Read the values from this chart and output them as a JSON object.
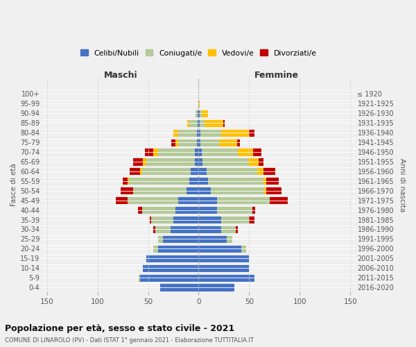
{
  "age_groups": [
    "0-4",
    "5-9",
    "10-14",
    "15-19",
    "20-24",
    "25-29",
    "30-34",
    "35-39",
    "40-44",
    "45-49",
    "50-54",
    "55-59",
    "60-64",
    "65-69",
    "70-74",
    "75-79",
    "80-84",
    "85-89",
    "90-94",
    "95-99",
    "100+"
  ],
  "birth_years": [
    "2016-2020",
    "2011-2015",
    "2006-2010",
    "2001-2005",
    "1996-2000",
    "1991-1995",
    "1986-1990",
    "1981-1985",
    "1976-1980",
    "1971-1975",
    "1966-1970",
    "1961-1965",
    "1956-1960",
    "1951-1955",
    "1946-1950",
    "1941-1945",
    "1936-1940",
    "1931-1935",
    "1926-1930",
    "1921-1925",
    "≤ 1920"
  ],
  "maschi": {
    "celibi": [
      38,
      58,
      55,
      52,
      40,
      35,
      28,
      25,
      23,
      20,
      12,
      9,
      8,
      4,
      4,
      2,
      2,
      1,
      1,
      0,
      0
    ],
    "coniugati": [
      0,
      1,
      0,
      0,
      5,
      5,
      15,
      22,
      33,
      50,
      53,
      60,
      48,
      48,
      36,
      18,
      18,
      8,
      2,
      0,
      0
    ],
    "vedovi": [
      0,
      0,
      0,
      0,
      0,
      0,
      0,
      0,
      0,
      0,
      0,
      1,
      2,
      3,
      5,
      3,
      5,
      2,
      0,
      0,
      0
    ],
    "divorziati": [
      0,
      0,
      0,
      0,
      0,
      0,
      2,
      1,
      4,
      12,
      12,
      5,
      10,
      10,
      8,
      4,
      0,
      0,
      0,
      0,
      0
    ]
  },
  "femmine": {
    "nubili": [
      35,
      55,
      50,
      50,
      42,
      28,
      22,
      22,
      18,
      18,
      12,
      9,
      8,
      4,
      3,
      2,
      2,
      1,
      1,
      0,
      0
    ],
    "coniugate": [
      0,
      0,
      0,
      0,
      5,
      5,
      15,
      28,
      35,
      52,
      53,
      55,
      50,
      45,
      36,
      18,
      20,
      5,
      2,
      0,
      0
    ],
    "vedove": [
      0,
      0,
      0,
      0,
      0,
      0,
      0,
      0,
      0,
      0,
      2,
      3,
      6,
      10,
      15,
      18,
      28,
      18,
      6,
      1,
      0
    ],
    "divorziate": [
      0,
      0,
      0,
      0,
      0,
      0,
      2,
      5,
      3,
      18,
      15,
      12,
      12,
      5,
      8,
      3,
      5,
      2,
      0,
      0,
      0
    ]
  },
  "colors": {
    "celibi": "#4472c4",
    "coniugati": "#b5c99a",
    "vedovi": "#ffc000",
    "divorziati": "#c00000"
  },
  "xlim": 155,
  "title": "Popolazione per età, sesso e stato civile - 2021",
  "subtitle": "COMUNE DI LINAROLO (PV) - Dati ISTAT 1° gennaio 2021 - Elaborazione TUTTITALIA.IT",
  "ylabel": "Fasce di età",
  "ylabel2": "Anni di nascita",
  "legend_labels": [
    "Celibi/Nubili",
    "Coniugati/e",
    "Vedovi/e",
    "Divorziati/e"
  ],
  "bg_color": "#f0f0f0",
  "grid_color": "#cccccc",
  "maschi_label": "Maschi",
  "femmine_label": "Femmine"
}
